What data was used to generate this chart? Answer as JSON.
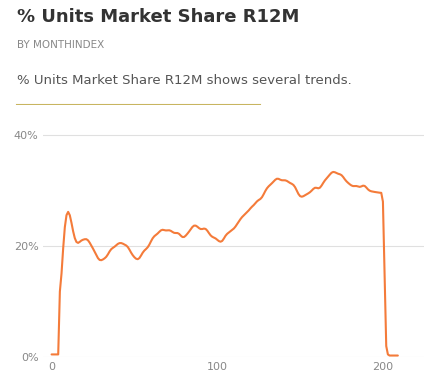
{
  "title": "% Units Market Share R12M",
  "subtitle": "BY MONTHINDEX",
  "description": "% Units Market Share R12M shows several trends.",
  "line_color": "#F47B3A",
  "background_color": "#ffffff",
  "title_color": "#333333",
  "subtitle_color": "#888888",
  "desc_color": "#555555",
  "grid_color": "#e0e0e0",
  "ylim": [
    0,
    0.44
  ],
  "xlim": [
    -5,
    225
  ],
  "yticks": [
    0,
    0.2,
    0.4
  ],
  "ytick_labels": [
    "0%",
    "20%",
    "40%"
  ],
  "xticks": [
    0,
    100,
    200
  ],
  "line_width": 1.5
}
